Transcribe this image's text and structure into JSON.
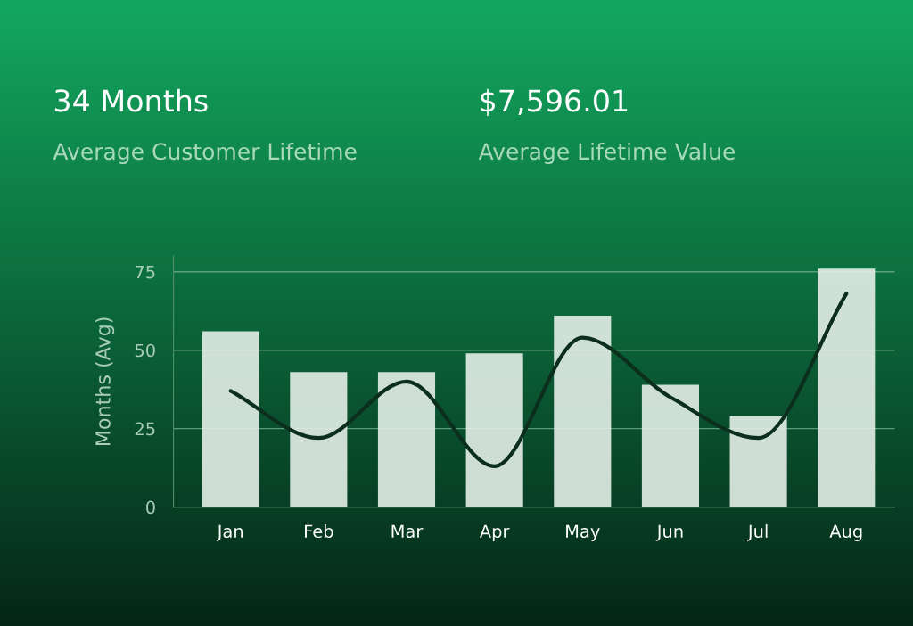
{
  "chart_data": {
    "type": "bar",
    "categories": [
      "Jan",
      "Feb",
      "Mar",
      "Apr",
      "May",
      "Jun",
      "Jul",
      "Aug"
    ],
    "series": [
      {
        "color": "#e4eee8",
        "values": [
          56,
          43,
          43,
          49,
          61,
          39,
          29,
          76
        ]
      },
      {
        "type": "line",
        "color": "#0b2e1d",
        "values": [
          37,
          22,
          40,
          13,
          54,
          35,
          22,
          68
        ]
      }
    ],
    "ylabel": "Months (Avg)",
    "ylim": [
      0,
      80
    ],
    "yticks": [
      0,
      25,
      50,
      75
    ],
    "grid": "y",
    "annotations": [
      "34 Months",
      "Average Customer Lifetime",
      "$7,596.01",
      "Average Lifetime Value"
    ]
  }
}
